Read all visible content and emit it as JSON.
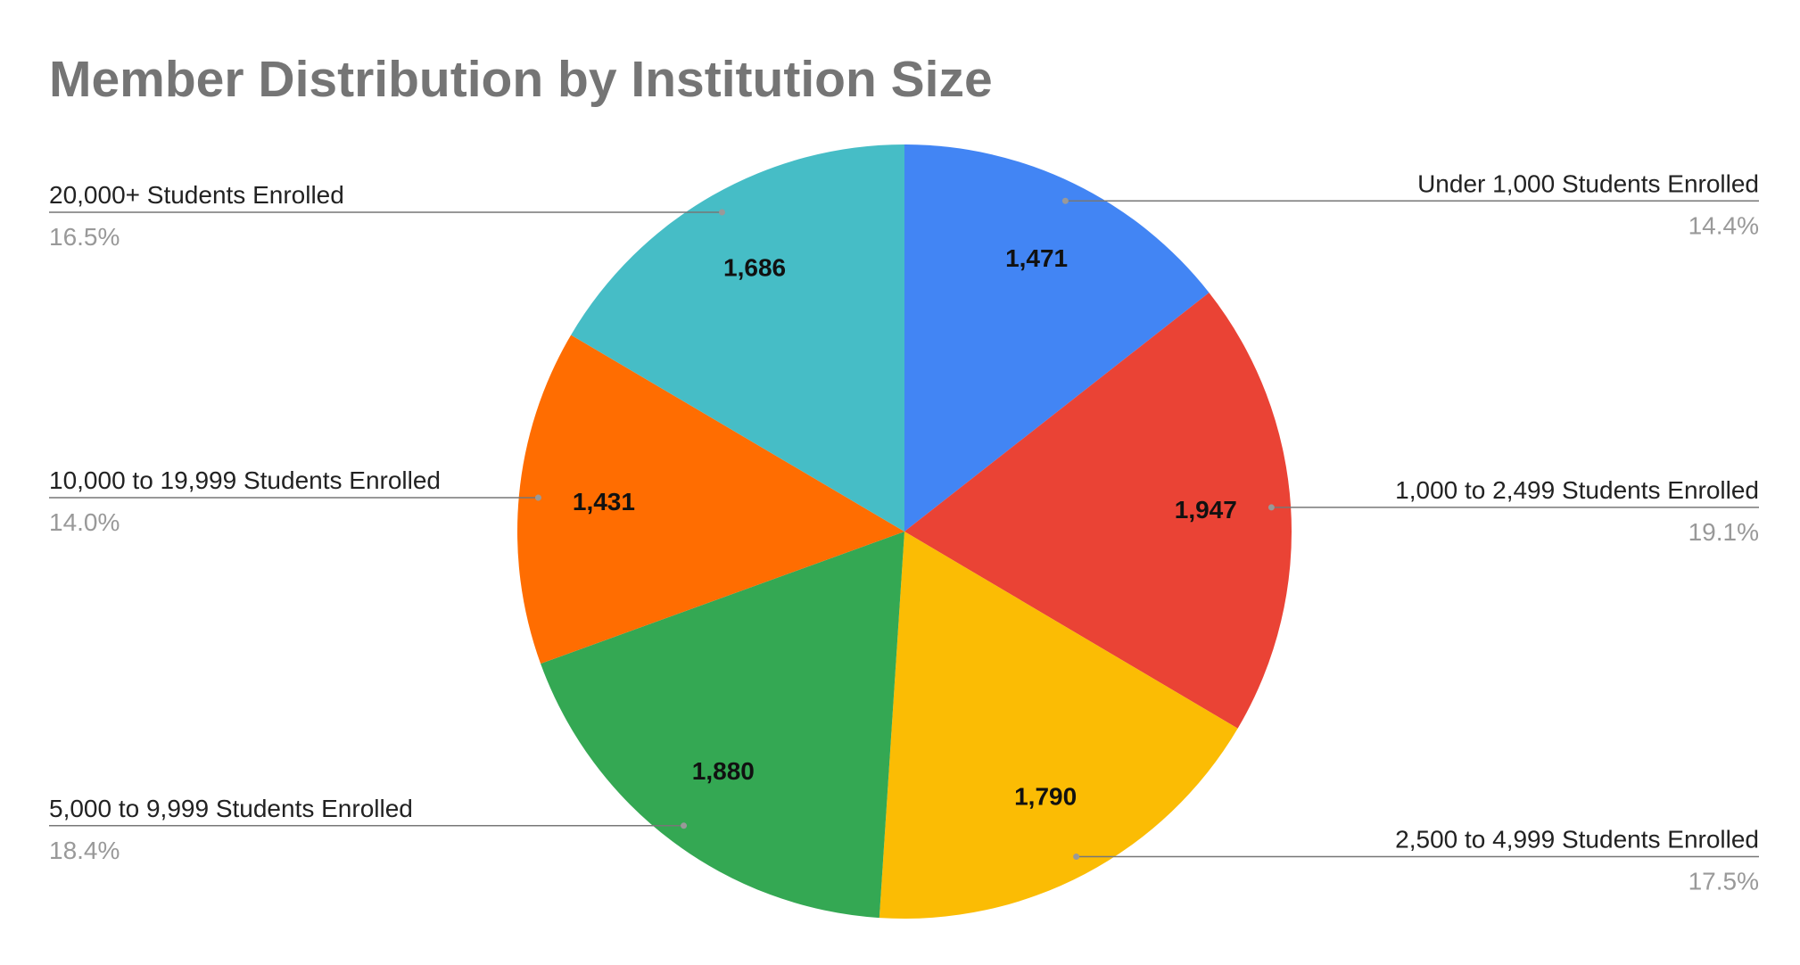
{
  "chart_data": {
    "type": "pie",
    "title": "Member Distribution by Institution Size",
    "categories": [
      "Under 1,000 Students Enrolled",
      "1,000 to 2,499 Students Enrolled",
      "2,500 to 4,999 Students Enrolled",
      "5,000 to 9,999 Students Enrolled",
      "10,000 to 19,999 Students Enrolled",
      "20,000+ Students Enrolled"
    ],
    "values": [
      1471,
      1947,
      1790,
      1880,
      1431,
      1686
    ],
    "value_labels": [
      "1,471",
      "1,947",
      "1,790",
      "1,880",
      "1,431",
      "1,686"
    ],
    "percent_labels": [
      "14.4%",
      "19.1%",
      "17.5%",
      "18.4%",
      "14.0%",
      "16.5%"
    ],
    "colors": [
      "#4285f4",
      "#ea4335",
      "#fbbc04",
      "#34a853",
      "#ff6d01",
      "#46bdc6"
    ]
  }
}
